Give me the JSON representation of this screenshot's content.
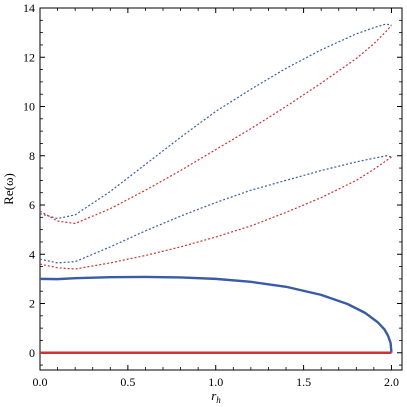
{
  "chart_data": {
    "type": "line",
    "title": "",
    "xlabel_main": "r",
    "xlabel_sub": "h",
    "ylabel": "Re(ω)",
    "xlim": [
      0.0,
      2.06
    ],
    "ylim": [
      -0.7,
      14.0
    ],
    "x_ticks": [
      "0.0",
      "0.5",
      "1.0",
      "1.5",
      "2.0"
    ],
    "y_ticks": [
      "0",
      "2",
      "4",
      "6",
      "8",
      "10",
      "12",
      "14"
    ],
    "grid": false,
    "legend": "none",
    "colors": {
      "blue": "#3a5ba6",
      "red": "#cc3333"
    },
    "series": [
      {
        "style": "solid",
        "color": "blue",
        "x": [
          0.0,
          0.1,
          0.2,
          0.4,
          0.6,
          0.8,
          1.0,
          1.2,
          1.4,
          1.6,
          1.75,
          1.85,
          1.92,
          1.96,
          1.98,
          1.995,
          2.0
        ],
        "y": [
          3.0,
          2.99,
          3.03,
          3.07,
          3.08,
          3.06,
          3.0,
          2.88,
          2.68,
          2.35,
          1.98,
          1.62,
          1.25,
          0.95,
          0.7,
          0.4,
          0.0
        ]
      },
      {
        "style": "solid",
        "color": "red",
        "x": [
          0.0,
          2.0
        ],
        "y": [
          0.0,
          0.0
        ]
      },
      {
        "style": "dotted",
        "color": "blue",
        "x": [
          0.0,
          0.1,
          0.2,
          0.4,
          0.6,
          0.8,
          1.0,
          1.2,
          1.4,
          1.6,
          1.8,
          1.9,
          1.97,
          2.0
        ],
        "y": [
          5.65,
          5.45,
          5.6,
          6.55,
          7.65,
          8.75,
          9.8,
          10.7,
          11.55,
          12.3,
          12.95,
          13.2,
          13.35,
          13.3
        ]
      },
      {
        "style": "dotted",
        "color": "red",
        "x": [
          0.0,
          0.1,
          0.2,
          0.4,
          0.6,
          0.8,
          1.0,
          1.2,
          1.4,
          1.6,
          1.8,
          1.9,
          1.97,
          2.0
        ],
        "y": [
          5.75,
          5.35,
          5.25,
          5.85,
          6.6,
          7.4,
          8.25,
          9.1,
          10.0,
          10.95,
          11.95,
          12.55,
          13.05,
          13.3
        ]
      },
      {
        "style": "dotted",
        "color": "blue",
        "x": [
          0.0,
          0.1,
          0.2,
          0.4,
          0.6,
          0.8,
          1.0,
          1.2,
          1.4,
          1.6,
          1.8,
          1.9,
          1.97,
          2.0
        ],
        "y": [
          3.8,
          3.65,
          3.7,
          4.3,
          4.95,
          5.55,
          6.1,
          6.6,
          7.0,
          7.4,
          7.75,
          7.9,
          8.0,
          7.95
        ]
      },
      {
        "style": "dotted",
        "color": "red",
        "x": [
          0.0,
          0.1,
          0.2,
          0.4,
          0.6,
          0.8,
          1.0,
          1.2,
          1.4,
          1.6,
          1.8,
          1.9,
          1.97,
          2.0
        ],
        "y": [
          3.6,
          3.45,
          3.4,
          3.65,
          3.95,
          4.3,
          4.7,
          5.15,
          5.7,
          6.3,
          7.0,
          7.45,
          7.8,
          7.95
        ]
      }
    ]
  }
}
